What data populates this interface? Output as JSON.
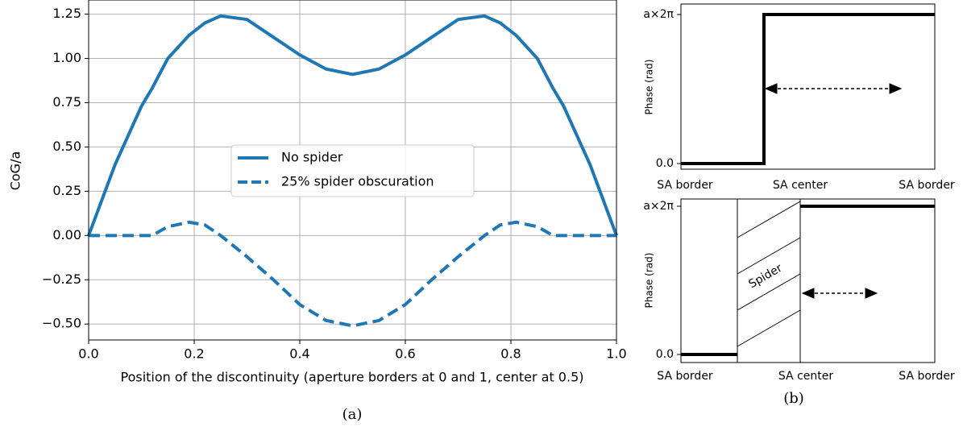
{
  "chart_data": {
    "type": "line",
    "xlabel": "Position of the discontinuity (aperture borders at 0 and 1, center at 0.5)",
    "ylabel": "CoG/a",
    "x": [
      0,
      0.05,
      0.1,
      0.12,
      0.15,
      0.19,
      0.22,
      0.25,
      0.3,
      0.35,
      0.4,
      0.45,
      0.5,
      0.55,
      0.6,
      0.65,
      0.7,
      0.75,
      0.78,
      0.81,
      0.85,
      0.88,
      0.9,
      0.95,
      1
    ],
    "series": [
      {
        "name": "No spider",
        "color": "#1f77b4",
        "dash": false,
        "values": [
          0,
          0.4,
          0.73,
          0.83,
          1.0,
          1.13,
          1.2,
          1.24,
          1.22,
          1.12,
          1.02,
          0.94,
          0.91,
          0.94,
          1.02,
          1.12,
          1.22,
          1.24,
          1.2,
          1.13,
          1.0,
          0.83,
          0.73,
          0.4,
          0
        ]
      },
      {
        "name": "25% spider obscuration",
        "color": "#1f77b4",
        "dash": true,
        "values": [
          0,
          0,
          0,
          0,
          0.05,
          0.075,
          0.06,
          0,
          -0.12,
          -0.25,
          -0.39,
          -0.48,
          -0.51,
          -0.48,
          -0.39,
          -0.25,
          -0.12,
          0,
          0.06,
          0.075,
          0.05,
          0,
          0,
          0,
          0
        ]
      }
    ],
    "xlim": [
      0,
      1
    ],
    "ylim": [
      -0.59,
      1.33
    ],
    "xticks": [
      {
        "value": 0,
        "label": "0.0"
      },
      {
        "value": 0.2,
        "label": "0.2"
      },
      {
        "value": 0.4,
        "label": "0.4"
      },
      {
        "value": 0.6,
        "label": "0.6"
      },
      {
        "value": 0.8,
        "label": "0.8"
      },
      {
        "value": 1,
        "label": "1.0"
      }
    ],
    "yticks": [
      {
        "value": -0.5,
        "label": "−0.50"
      },
      {
        "value": -0.25,
        "label": "−0.25"
      },
      {
        "value": 0,
        "label": "0.00"
      },
      {
        "value": 0.25,
        "label": "0.25"
      },
      {
        "value": 0.5,
        "label": "0.50"
      },
      {
        "value": 0.75,
        "label": "0.75"
      },
      {
        "value": 1,
        "label": "1.00"
      },
      {
        "value": 1.25,
        "label": "1.25"
      }
    ],
    "grid": true,
    "legend": "center"
  },
  "caption_a": "(a)",
  "caption_b": "(b)",
  "panel_b": {
    "ylabel": "Phase (rad)",
    "y_top": "a×2π",
    "y_bottom": "0.0",
    "x_left": "SA border",
    "x_center": "SA center",
    "x_right": "SA border",
    "spider": "Spider"
  }
}
